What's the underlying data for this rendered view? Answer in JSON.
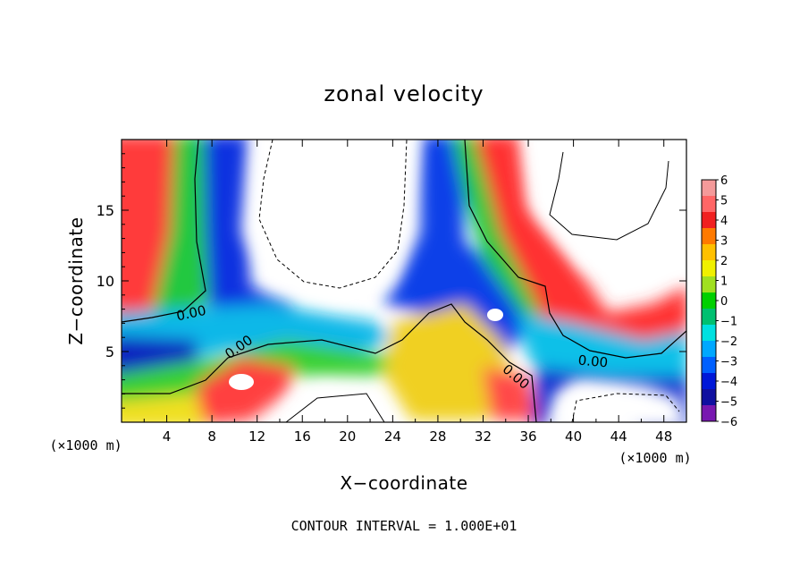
{
  "chart_data": {
    "type": "heatmap",
    "title": "zonal velocity",
    "xlabel": "X−coordinate",
    "ylabel": "Z−coordinate",
    "x_unit_left": "(×1000 m)",
    "x_unit_right": "(×1000 m)",
    "footer": "CONTOUR INTERVAL = 1.000E+01",
    "xlim": [
      0,
      50
    ],
    "ylim": [
      0,
      20
    ],
    "x_ticks": [
      4,
      8,
      12,
      16,
      20,
      24,
      28,
      32,
      36,
      40,
      44,
      48
    ],
    "x_tick_labels": [
      "4",
      "8",
      "12",
      "16",
      "20",
      "24",
      "28",
      "32",
      "36",
      "40",
      "44",
      "48"
    ],
    "y_ticks": [
      5,
      10,
      15
    ],
    "y_tick_labels": [
      "5",
      "10",
      "15"
    ],
    "colorbar": {
      "min": -6,
      "max": 6,
      "tick_labels": [
        "6",
        "5",
        "4",
        "3",
        "2",
        "1",
        "0",
        "−1",
        "−2",
        "−3",
        "−4",
        "−5",
        "−6"
      ],
      "colors": [
        "#f49a9a",
        "#ff6666",
        "#f02020",
        "#ff7a00",
        "#ffc000",
        "#f0f000",
        "#a0e020",
        "#00d000",
        "#00c070",
        "#00e0e0",
        "#00a8ff",
        "#0060ff",
        "#0018d8",
        "#1010a0",
        "#7818b0"
      ]
    },
    "contour_labels": [
      "0.00",
      "0.00",
      "0.00",
      "0.00"
    ]
  }
}
